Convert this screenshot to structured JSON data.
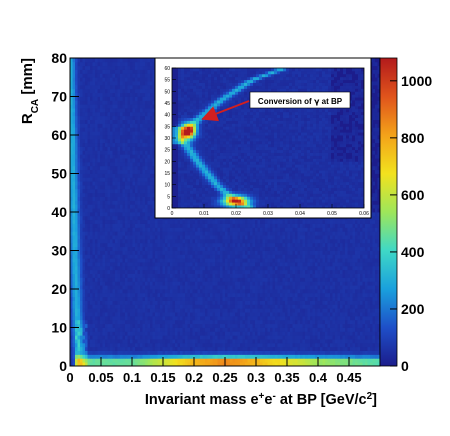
{
  "chart_data": [
    {
      "type": "heatmap",
      "xlabel_parts": [
        "Invariant mass e",
        "+",
        "e",
        "-",
        " at BP [GeV/c",
        "2",
        "]"
      ],
      "ylabel_parts": [
        "R",
        "CA",
        " [mm]"
      ],
      "xlim": [
        0,
        0.5
      ],
      "ylim": [
        0,
        80
      ],
      "x_ticks": [
        "0",
        "0.05",
        "0.1",
        "0.15",
        "0.2",
        "0.25",
        "0.3",
        "0.35",
        "0.4",
        "0.45"
      ],
      "y_ticks": [
        "0",
        "10",
        "20",
        "30",
        "40",
        "50",
        "60",
        "70",
        "80"
      ],
      "colorbar": {
        "range": [
          0,
          1080
        ],
        "ticks": [
          "0",
          "200",
          "400",
          "600",
          "800",
          "1000"
        ]
      },
      "features": [
        {
          "name": "conversion-band",
          "x": [
            0.0,
            0.004,
            0.008,
            0.012,
            0.016
          ],
          "y": [
            80,
            55,
            30,
            10,
            0
          ],
          "value": 250
        },
        {
          "name": "low-radius-band",
          "x": [
            0.02,
            0.1,
            0.2,
            0.25,
            0.3,
            0.4,
            0.5
          ],
          "y": [
            1,
            1,
            1,
            1,
            1,
            1,
            1
          ],
          "value": [
            450,
            450,
            800,
            900,
            800,
            550,
            420
          ]
        }
      ]
    },
    {
      "type": "heatmap",
      "inset": true,
      "annotation_parts": [
        "Conversion of ",
        "γ",
        " at BP"
      ],
      "xlim": [
        0,
        0.06
      ],
      "ylim": [
        0,
        60
      ],
      "x_ticks": [
        "0",
        "0.01",
        "0.02",
        "0.03",
        "0.04",
        "0.05",
        "0.06"
      ],
      "y_ticks": [
        "0",
        "5",
        "10",
        "15",
        "20",
        "25",
        "30",
        "35",
        "40",
        "45",
        "50",
        "55",
        "60"
      ],
      "features": [
        {
          "name": "upper-branch",
          "x": [
            0.003,
            0.008,
            0.015,
            0.025,
            0.035
          ],
          "y": [
            30,
            38,
            46,
            55,
            60
          ]
        },
        {
          "name": "lower-branch",
          "x": [
            0.003,
            0.008,
            0.014,
            0.02,
            0.025
          ],
          "y": [
            30,
            20,
            10,
            3,
            0
          ]
        },
        {
          "name": "hot-spot-upper",
          "x": [
            0.005
          ],
          "y": [
            33
          ],
          "value": 1050
        },
        {
          "name": "hot-spot-lower",
          "x": [
            0.02
          ],
          "y": [
            3
          ],
          "value": 900
        }
      ]
    }
  ],
  "colors": {
    "palette": [
      "#1c1d8c",
      "#1e4fc8",
      "#1aa0dd",
      "#3fd8c6",
      "#9ee65a",
      "#f2e21e",
      "#f3a21a",
      "#e0541c",
      "#b21a1c"
    ],
    "arrow": "#d21f1f"
  }
}
